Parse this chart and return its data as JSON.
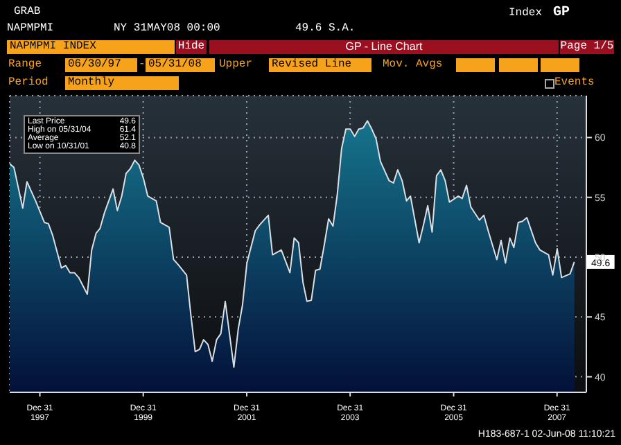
{
  "chart_data": {
    "type": "area",
    "title": "GP - Line Chart",
    "x": [
      "1997-06",
      "1997-07",
      "1997-09",
      "1997-10",
      "1997-12",
      "1998-02",
      "1998-03",
      "1998-04",
      "1998-06",
      "1998-07",
      "1998-08",
      "1998-09",
      "1998-10",
      "1998-12",
      "1999-01",
      "1999-02",
      "1999-03",
      "1999-04",
      "1999-06",
      "1999-07",
      "1999-08",
      "1999-09",
      "1999-10",
      "1999-11",
      "1999-12",
      "2000-01",
      "2000-02",
      "2000-04",
      "2000-05",
      "2000-07",
      "2000-08",
      "2000-09",
      "2000-11",
      "2000-12",
      "2001-01",
      "2001-02",
      "2001-03",
      "2001-04",
      "2001-05",
      "2001-06",
      "2001-07",
      "2001-08",
      "2001-10",
      "2001-11",
      "2001-12",
      "2002-01",
      "2002-03",
      "2002-04",
      "2002-06",
      "2002-07",
      "2002-09",
      "2002-11",
      "2002-12",
      "2003-01",
      "2003-02",
      "2003-03",
      "2003-04",
      "2003-05",
      "2003-06",
      "2003-07",
      "2003-08",
      "2003-09",
      "2003-10",
      "2003-11",
      "2003-12",
      "2004-01",
      "2004-02",
      "2004-03",
      "2004-04",
      "2004-05",
      "2004-06",
      "2004-07",
      "2004-08",
      "2004-10",
      "2004-11",
      "2004-12",
      "2005-01",
      "2005-02",
      "2005-03",
      "2005-05",
      "2005-06",
      "2005-07",
      "2005-08",
      "2005-09",
      "2005-10",
      "2005-11",
      "2005-12",
      "2006-02",
      "2006-03",
      "2006-04",
      "2006-05",
      "2006-07",
      "2006-08",
      "2006-09",
      "2006-11",
      "2006-12",
      "2007-01",
      "2007-02",
      "2007-03",
      "2007-04",
      "2007-05",
      "2007-06",
      "2007-08",
      "2007-09",
      "2007-11",
      "2007-12",
      "2008-01",
      "2008-02",
      "2008-04",
      "2008-05"
    ],
    "series": [
      {
        "color": "#16748c",
        "values": [
          57.8,
          57.5,
          54.1,
          56.3,
          54.7,
          52.9,
          52.8,
          51.8,
          49.1,
          49.3,
          48.7,
          48.7,
          48.3,
          46.9,
          50.6,
          52.0,
          52.4,
          53.7,
          55.7,
          53.9,
          55.1,
          57.0,
          57.4,
          58.1,
          57.7,
          56.6,
          55.1,
          54.7,
          52.9,
          52.5,
          49.8,
          49.4,
          48.5,
          45.2,
          42.1,
          42.3,
          43.1,
          42.7,
          41.3,
          43.1,
          43.6,
          46.3,
          40.8,
          44.0,
          46.0,
          49.5,
          52.2,
          52.7,
          53.5,
          50.2,
          50.6,
          48.7,
          51.6,
          51.2,
          47.9,
          46.3,
          46.4,
          48.9,
          49.0,
          51.0,
          53.2,
          52.6,
          55.2,
          59.1,
          60.7,
          60.7,
          60.1,
          60.7,
          60.8,
          61.4,
          60.7,
          59.9,
          58.0,
          56.4,
          56.2,
          57.3,
          56.4,
          54.7,
          55.1,
          51.2,
          52.7,
          54.3,
          52.1,
          56.8,
          57.3,
          56.4,
          54.6,
          55.1,
          54.9,
          56.0,
          54.2,
          53.1,
          53.5,
          52.2,
          49.8,
          51.4,
          49.5,
          51.6,
          50.8,
          52.9,
          53.0,
          53.3,
          51.2,
          50.6,
          50.2,
          48.5,
          50.7,
          48.3,
          48.6,
          49.6
        ]
      }
    ],
    "xlim": [
      "1997-06-01",
      "2008-07-25"
    ],
    "xticks": [
      {
        "value": "1997-12-31",
        "label": "Dec 31\n1997"
      },
      {
        "value": "1999-12-31",
        "label": "Dec 31\n1999"
      },
      {
        "value": "2001-12-31",
        "label": "Dec 31\n2001"
      },
      {
        "value": "2003-12-31",
        "label": "Dec 31\n2003"
      },
      {
        "value": "2005-12-31",
        "label": "Dec 31\n2005"
      },
      {
        "value": "2007-12-31",
        "label": "Dec 31\n2007"
      }
    ],
    "ylim": [
      38.7,
      63.5
    ],
    "yticks": [
      40,
      45,
      50,
      55,
      60
    ],
    "grid": true,
    "annotations": [
      "GRAB",
      "NAPMPMI",
      "NY 31MAY08 00:00",
      "49.6 S.A.",
      "Index",
      "GP",
      "NAPMPMI INDEX",
      "Hide",
      "Page 1/5",
      "Range",
      "06/30/97",
      "-",
      "05/31/08",
      "Upper",
      "Revised Line",
      "Mov. Avgs",
      "Period",
      "Monthly",
      "Events",
      "Last Price",
      "49.6",
      "High on 05/31/04",
      "61.4",
      "Average",
      "52.1",
      "Low on 10/31/01",
      "40.8",
      {
        "text": "49.6",
        "x": "2008-05",
        "y": 49.6
      },
      "H183-687-1 02-Jun-08 11:10:21"
    ]
  }
}
